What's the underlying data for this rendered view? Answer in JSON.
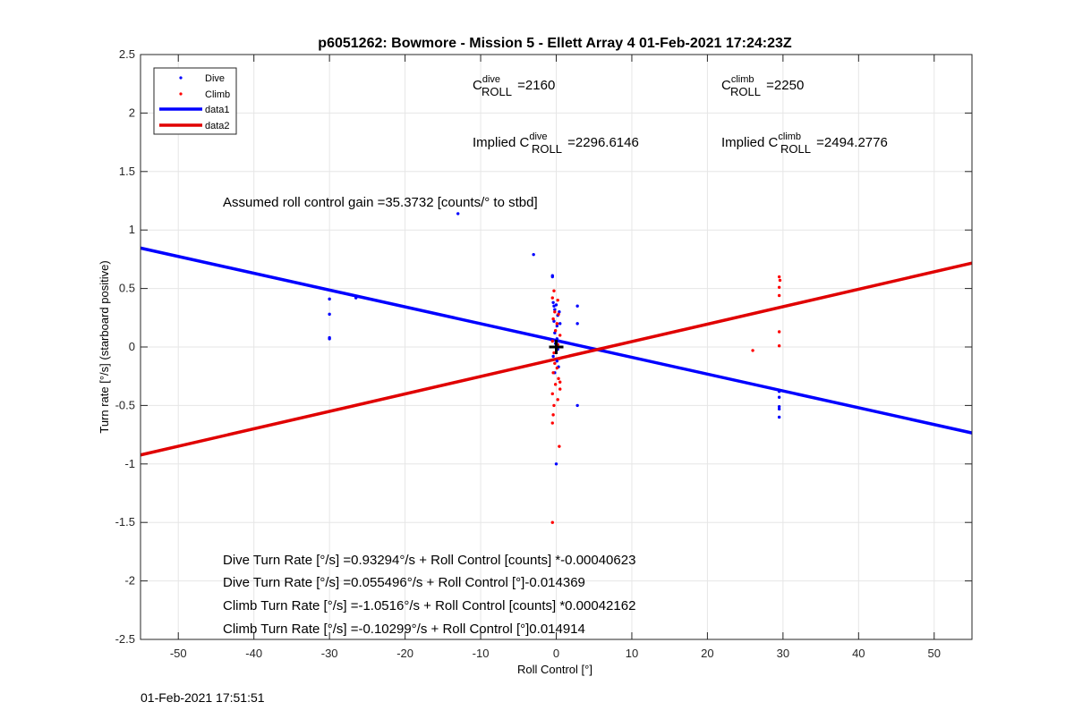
{
  "chart_data": {
    "type": "scatter",
    "title": "p6051262: Bowmore - Mission 5 - Ellett Array 4 01-Feb-2021 17:24:23Z",
    "xlabel": "Roll Control [°]",
    "ylabel": "Turn rate [°/s] (starboard positive)",
    "xlim": [
      -55,
      55
    ],
    "ylim": [
      -2.5,
      2.5
    ],
    "xticks": [
      -50,
      -40,
      -30,
      -20,
      -10,
      0,
      10,
      20,
      30,
      40,
      50
    ],
    "yticks": [
      -2.5,
      -2,
      -1.5,
      -1,
      -0.5,
      0,
      0.5,
      1,
      1.5,
      2,
      2.5
    ],
    "grid": true,
    "legend_position": "top-left",
    "colors": {
      "dive": "#0000ff",
      "climb": "#ff0000",
      "data1": "#0000ff",
      "data2": "#e00000",
      "origin_marker": "#000000"
    },
    "series": [
      {
        "name": "Dive",
        "style": "points",
        "color": "#0000ff",
        "points": [
          [
            -30,
            0.41
          ],
          [
            -30,
            0.28
          ],
          [
            -30,
            0.08
          ],
          [
            -30,
            0.07
          ],
          [
            -26.5,
            0.42
          ],
          [
            -13,
            1.14
          ],
          [
            -3,
            0.79
          ],
          [
            -0.5,
            0.61
          ],
          [
            -0.5,
            0.6
          ],
          [
            -0.4,
            0.38
          ],
          [
            -0.3,
            0.35
          ],
          [
            -0.2,
            0.32
          ],
          [
            0,
            0.36
          ],
          [
            0.2,
            0.27
          ],
          [
            -0.3,
            0.22
          ],
          [
            0.1,
            0.18
          ],
          [
            -0.2,
            0.12
          ],
          [
            0.1,
            0.07
          ],
          [
            -0.1,
            0.03
          ],
          [
            0.2,
            -0.02
          ],
          [
            -0.4,
            -0.08
          ],
          [
            0.1,
            -0.12
          ],
          [
            0.3,
            -0.17
          ],
          [
            -0.2,
            -0.22
          ],
          [
            0.4,
            0.3
          ],
          [
            0.5,
            0.2
          ],
          [
            0,
            -1.0
          ],
          [
            2.8,
            0.35
          ],
          [
            2.8,
            0.2
          ],
          [
            2.8,
            -0.5
          ],
          [
            29.5,
            -0.38
          ],
          [
            29.5,
            -0.43
          ],
          [
            29.5,
            -0.51
          ],
          [
            29.5,
            -0.53
          ],
          [
            29.5,
            -0.6
          ]
        ]
      },
      {
        "name": "Climb",
        "style": "points",
        "color": "#ff0000",
        "points": [
          [
            -0.3,
            0.48
          ],
          [
            -0.5,
            0.42
          ],
          [
            0.2,
            0.4
          ],
          [
            -0.2,
            0.3
          ],
          [
            0.3,
            0.28
          ],
          [
            -0.4,
            0.24
          ],
          [
            0.1,
            0.2
          ],
          [
            -0.1,
            0.14
          ],
          [
            0.5,
            0.1
          ],
          [
            -0.5,
            0.05
          ],
          [
            0.2,
            0.02
          ],
          [
            -0.3,
            -0.05
          ],
          [
            0.4,
            -0.1
          ],
          [
            -0.2,
            -0.14
          ],
          [
            0.1,
            -0.18
          ],
          [
            -0.4,
            -0.22
          ],
          [
            0.3,
            -0.27
          ],
          [
            -0.1,
            -0.32
          ],
          [
            0.5,
            -0.36
          ],
          [
            -0.5,
            -0.4
          ],
          [
            0.2,
            -0.45
          ],
          [
            -0.3,
            -0.5
          ],
          [
            -0.4,
            -0.58
          ],
          [
            -0.5,
            -0.65
          ],
          [
            0.5,
            -0.3
          ],
          [
            0.4,
            -0.85
          ],
          [
            -0.5,
            -1.5
          ],
          [
            26,
            -0.03
          ],
          [
            29.5,
            0.6
          ],
          [
            29.6,
            0.57
          ],
          [
            29.5,
            0.51
          ],
          [
            29.5,
            0.44
          ],
          [
            29.5,
            0.13
          ],
          [
            29.5,
            0.01
          ]
        ]
      },
      {
        "name": "data1",
        "style": "line",
        "color": "#0000ff",
        "intercept": 0.055496,
        "slope": -0.014369
      },
      {
        "name": "data2",
        "style": "line",
        "color": "#e00000",
        "intercept": -0.10299,
        "slope": 0.014914
      }
    ],
    "origin_marker": [
      0,
      0
    ],
    "annotations": {
      "c_dive": {
        "base": "C",
        "sup": "dive",
        "sub": "ROLL",
        "value": " =2160"
      },
      "c_climb": {
        "base": "C",
        "sup": "climb",
        "sub": "ROLL",
        "value": " =2250"
      },
      "implied_dive": {
        "prefix": "Implied ",
        "base": "C",
        "sup": "dive",
        "sub": "ROLL",
        "value": " =2296.6146"
      },
      "implied_climb": {
        "prefix": "Implied ",
        "base": "C",
        "sup": "climb",
        "sub": "ROLL",
        "value": " =2494.2776"
      },
      "gain": "Assumed roll control gain =35.3732 [counts/° to stbd]",
      "dive_counts": "Dive Turn Rate [°/s] =0.93294°/s + Roll Control [counts] *-0.00040623",
      "dive_degrees": "Dive Turn Rate [°/s] =0.055496°/s + Roll Control [°]-0.014369",
      "climb_counts": "Climb Turn Rate [°/s] =-1.0516°/s + Roll Control [counts] *0.00042162",
      "climb_degrees": "Climb Turn Rate [°/s] =-0.10299°/s + Roll Control [°]0.014914"
    }
  },
  "footer_timestamp": "01-Feb-2021 17:51:51"
}
